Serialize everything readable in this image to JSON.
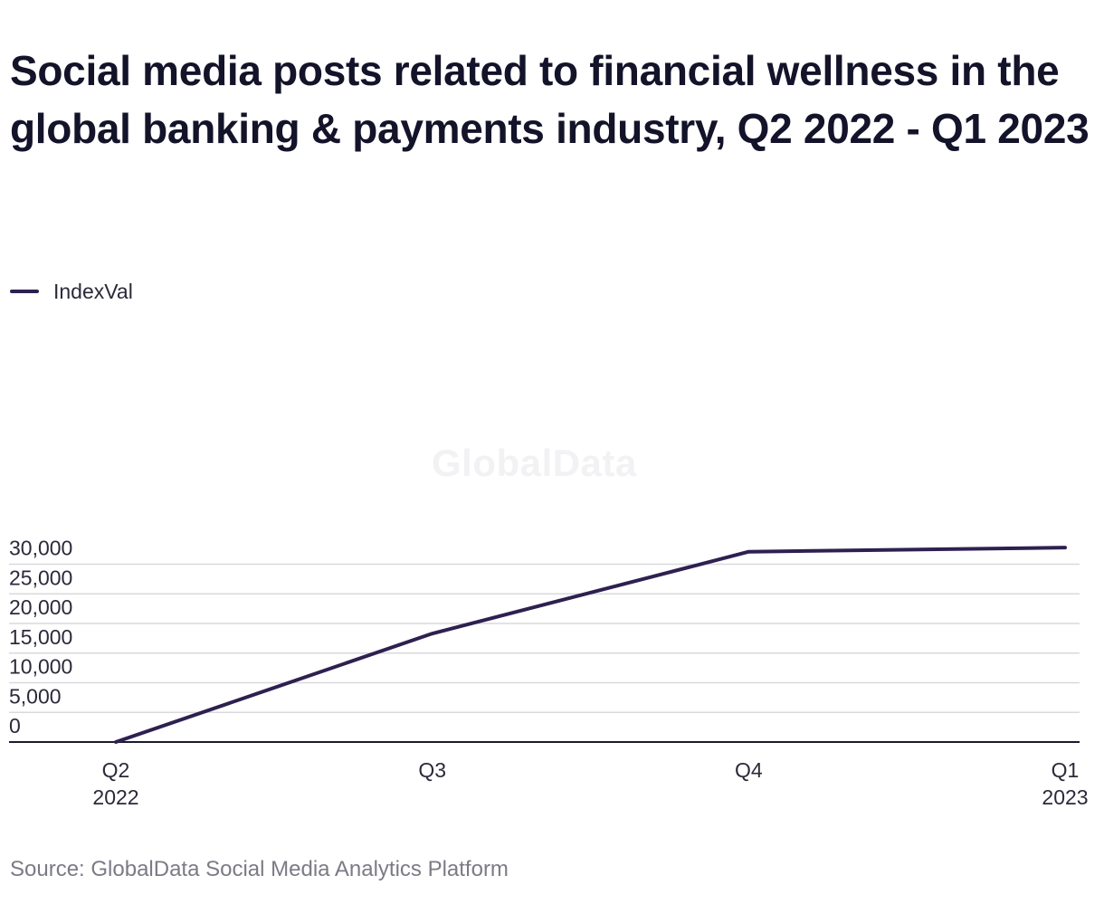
{
  "header": {
    "title": "Social media posts related to financial wellness in the global banking & payments industry, Q2 2022 - Q1 2023"
  },
  "legend": {
    "label": "IndexVal",
    "color": "#2e2050"
  },
  "watermark": "GlobalData",
  "footer": {
    "source": "Source: GlobalData Social Media Analytics Platform"
  },
  "chart_data": {
    "type": "line",
    "title": "Social media posts related to financial wellness in the global banking & payments industry, Q2 2022 - Q1 2023",
    "categories": [
      [
        "Q2",
        "2022"
      ],
      [
        "Q3"
      ],
      [
        "Q4"
      ],
      [
        "Q1",
        "2023"
      ]
    ],
    "series": [
      {
        "name": "IndexVal",
        "color": "#2e2050",
        "values": [
          0,
          18300,
          32100,
          32800
        ]
      }
    ],
    "yticks": [
      "0",
      "5,000",
      "10,000",
      "15,000",
      "20,000",
      "25,000",
      "30,000"
    ],
    "ytick_values": [
      0,
      5000,
      10000,
      15000,
      20000,
      25000,
      30000
    ],
    "ylim": [
      0,
      32000
    ],
    "xlabel": "",
    "ylabel": "",
    "grid": true,
    "legend_position": "top-left"
  }
}
